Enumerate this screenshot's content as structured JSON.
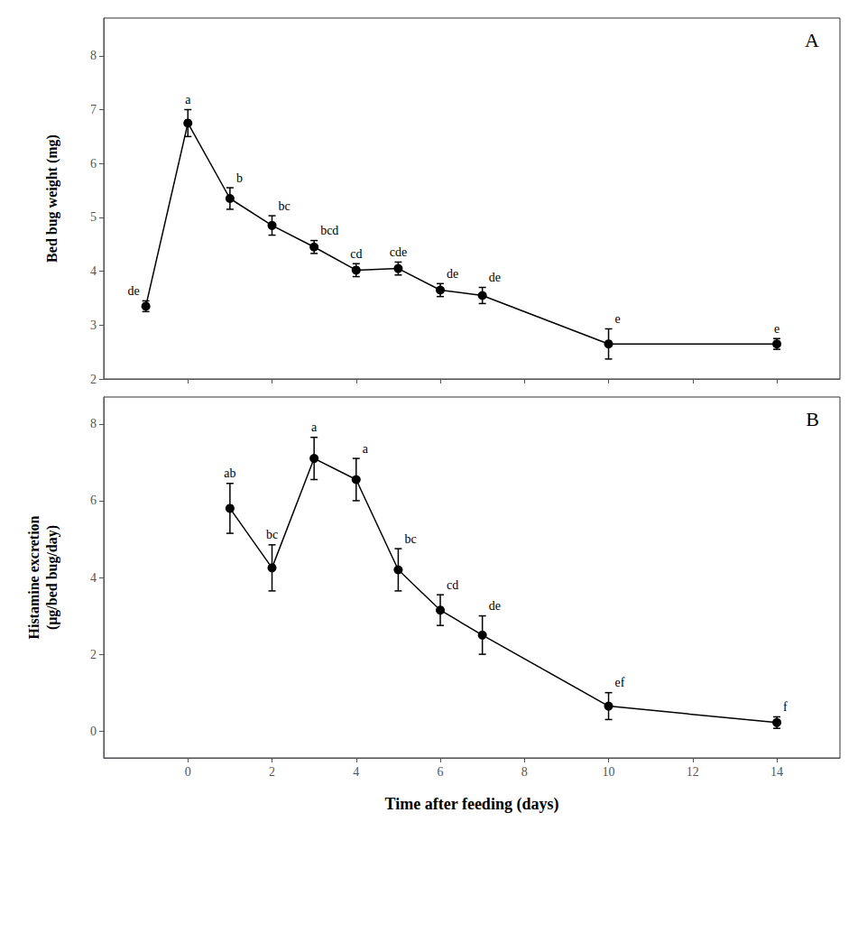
{
  "chart_data": [
    {
      "type": "line",
      "title": "A",
      "ylabel": "Bed bug weight (mg)",
      "x": [
        -1,
        0,
        1,
        2,
        3,
        4,
        5,
        6,
        7,
        10,
        14
      ],
      "values": [
        3.35,
        6.75,
        5.35,
        4.85,
        4.45,
        4.02,
        4.05,
        3.65,
        3.55,
        2.65,
        2.65
      ],
      "yerr": [
        0.1,
        0.25,
        0.2,
        0.18,
        0.12,
        0.12,
        0.12,
        0.12,
        0.15,
        0.28,
        0.1
      ],
      "point_labels": [
        "de",
        "a",
        "b",
        "bc",
        "bcd",
        "cd",
        "cde",
        "de",
        "de",
        "e",
        "e"
      ],
      "xlim": [
        -2.0,
        15.5
      ],
      "xticks": [
        0,
        2,
        4,
        6,
        8,
        10,
        12,
        14
      ],
      "ylim": [
        2.0,
        8.7
      ],
      "yticks": [
        2,
        3,
        4,
        5,
        6,
        7,
        8
      ],
      "tick_labels": "y",
      "grid": false,
      "color": "#000000",
      "marker": "circle"
    },
    {
      "type": "line",
      "title": "B",
      "ylabel": "Histamine excretion\n(μg/bed bug/day)",
      "xlabel": "Time after feeding (days)",
      "x": [
        1,
        2,
        3,
        4,
        5,
        6,
        7,
        10,
        14
      ],
      "values": [
        5.8,
        4.25,
        7.1,
        6.55,
        4.2,
        3.15,
        2.5,
        0.65,
        0.22
      ],
      "yerr": [
        0.65,
        0.6,
        0.55,
        0.55,
        0.55,
        0.4,
        0.5,
        0.35,
        0.15
      ],
      "point_labels": [
        "ab",
        "bc",
        "a",
        "a",
        "bc",
        "cd",
        "de",
        "ef",
        "f"
      ],
      "xlim": [
        -2.0,
        15.5
      ],
      "xticks": [
        0,
        2,
        4,
        6,
        8,
        10,
        12,
        14
      ],
      "ylim": [
        -0.7,
        8.7
      ],
      "yticks": [
        0,
        2,
        4,
        6,
        8
      ],
      "grid": false,
      "color": "#000000",
      "marker": "circle"
    }
  ]
}
